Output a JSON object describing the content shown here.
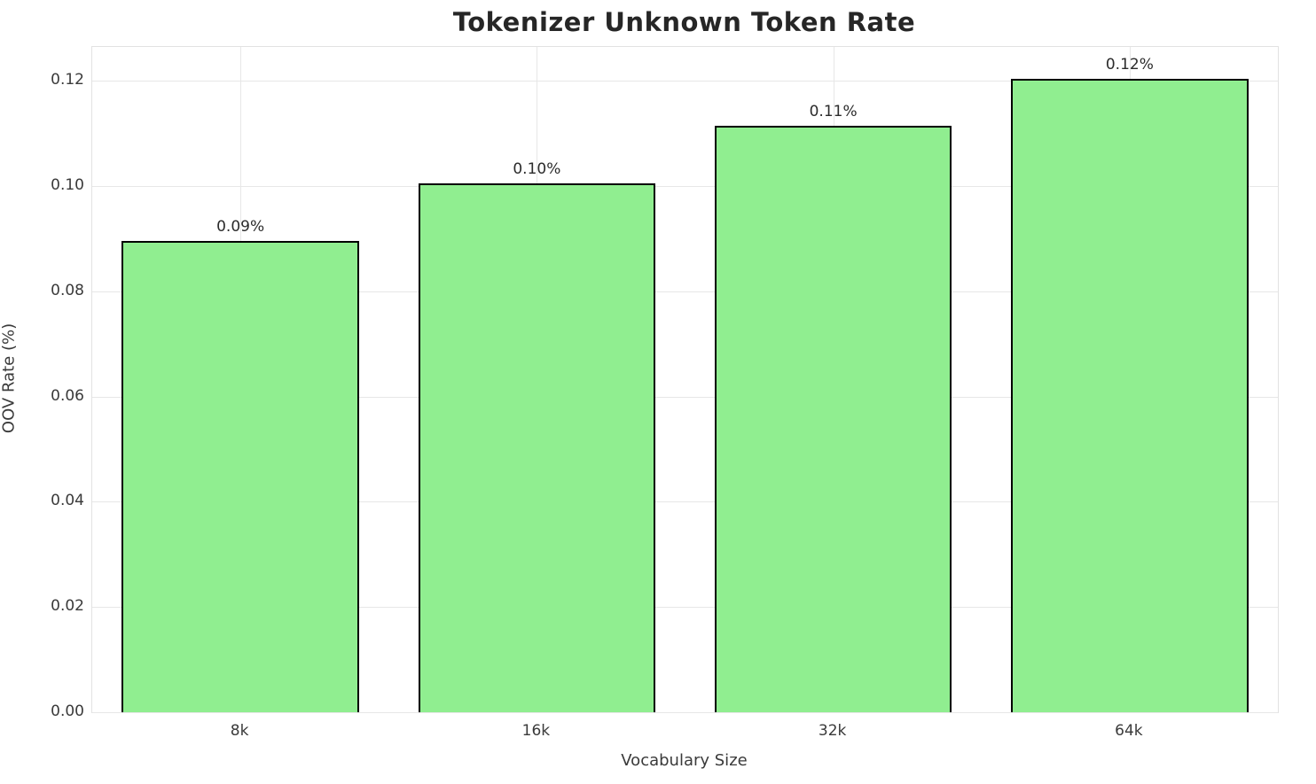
{
  "title": "Tokenizer Unknown Token Rate",
  "chart_data": {
    "type": "bar",
    "title": "Tokenizer Unknown Token Rate",
    "xlabel": "Vocabulary Size",
    "ylabel": "OOV Rate (%)",
    "categories": [
      "8k",
      "16k",
      "32k",
      "64k"
    ],
    "values": [
      0.0895,
      0.1005,
      0.1115,
      0.1203
    ],
    "bar_labels": [
      "0.09%",
      "0.10%",
      "0.11%",
      "0.12%"
    ],
    "ylim": [
      0,
      0.1264
    ],
    "yticks": [
      0.0,
      0.02,
      0.04,
      0.06,
      0.08,
      0.1,
      0.12
    ],
    "ytick_labels": [
      "0.00",
      "0.02",
      "0.04",
      "0.06",
      "0.08",
      "0.10",
      "0.12"
    ],
    "grid": true,
    "legend": false,
    "bar_color": "#90EE90",
    "bar_edge_color": "#000000",
    "bar_width_fraction": 0.8
  }
}
